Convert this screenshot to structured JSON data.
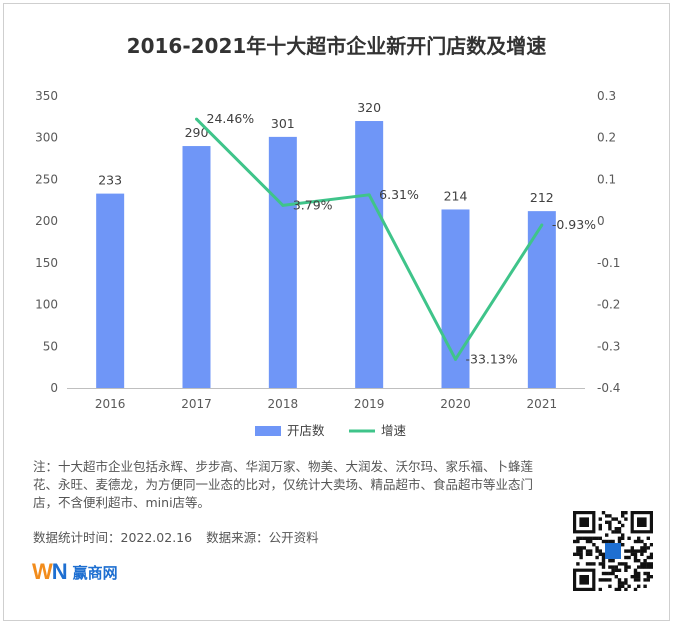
{
  "chart_data": {
    "type": "bar",
    "title": "2016-2021年十大超市企业新开门店数及增速",
    "categories": [
      "2016",
      "2017",
      "2018",
      "2019",
      "2020",
      "2021"
    ],
    "series": [
      {
        "name": "开店数",
        "type": "bar",
        "axis": "left",
        "color": "#6f96f7",
        "values": [
          233,
          290,
          301,
          320,
          214,
          212
        ],
        "labels": [
          "233",
          "290",
          "301",
          "320",
          "214",
          "212"
        ]
      },
      {
        "name": "增速",
        "type": "line",
        "axis": "right",
        "color": "#3fc48a",
        "x": [
          "2017",
          "2018",
          "2019",
          "2020",
          "2021"
        ],
        "values": [
          0.2446,
          0.0379,
          0.0631,
          -0.3313,
          -0.0093
        ],
        "labels": [
          "24.46%",
          "3.79%",
          "6.31%",
          "-33.13%",
          "-0.93%"
        ]
      }
    ],
    "left_axis": {
      "min": 0,
      "max": 350,
      "ticks": [
        "0",
        "50",
        "100",
        "150",
        "200",
        "250",
        "300",
        "350"
      ]
    },
    "right_axis": {
      "min": -0.4,
      "max": 0.3,
      "ticks": [
        "-0.4",
        "-0.3",
        "-0.2",
        "-0.1",
        "0",
        "0.1",
        "0.2",
        "0.3"
      ]
    },
    "grid": false,
    "legend": "bottom"
  },
  "note": "注：十大超市企业包括永辉、步步高、华润万家、物美、大润发、沃尔玛、家乐福、卜蜂莲花、永旺、麦德龙，为方便同一业态的比对，仅统计大卖场、精品超市、食品超市等业态门店，不含便利超市、mini店等。",
  "meta": {
    "stat_time": "数据统计时间：2022.02.16",
    "source": "数据来源：公开资料"
  },
  "brand": {
    "logo_w": "W",
    "logo_n": "N",
    "name": "赢商网"
  },
  "icons": {
    "qr": "qr-code-icon"
  }
}
